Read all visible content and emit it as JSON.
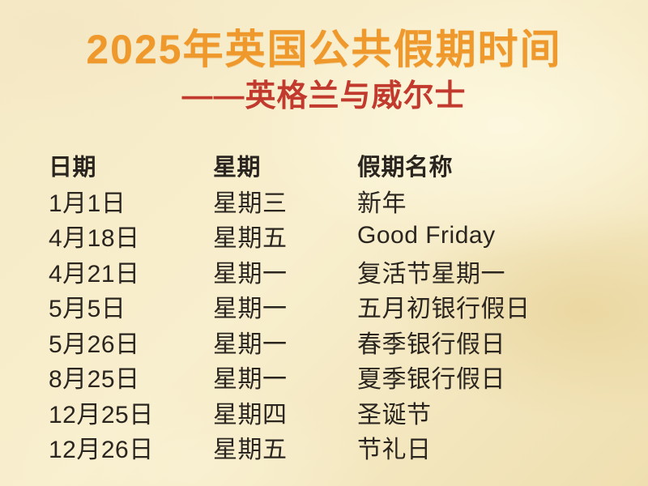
{
  "title": "2025年英国公共假期时间",
  "subtitle": "——英格兰与威尔士",
  "colors": {
    "title_orange": "#ef992c",
    "subtitle_red": "#c23a2d",
    "text_dark": "#2b2520",
    "background_cream": "#f8efce",
    "background_gold": "#efdfb0"
  },
  "table": {
    "headers": [
      "日期",
      "星期",
      "假期名称"
    ],
    "rows": [
      [
        "1月1日",
        "星期三",
        "新年"
      ],
      [
        "4月18日",
        "星期五",
        "Good Friday"
      ],
      [
        "4月21日",
        "星期一",
        "复活节星期一"
      ],
      [
        "5月5日",
        "星期一",
        "五月初银行假日"
      ],
      [
        "5月26日",
        "星期一",
        "春季银行假日"
      ],
      [
        "8月25日",
        "星期一",
        "夏季银行假日"
      ],
      [
        "12月25日",
        "星期四",
        "圣诞节"
      ],
      [
        "12月26日",
        "星期五",
        "节礼日"
      ]
    ]
  }
}
